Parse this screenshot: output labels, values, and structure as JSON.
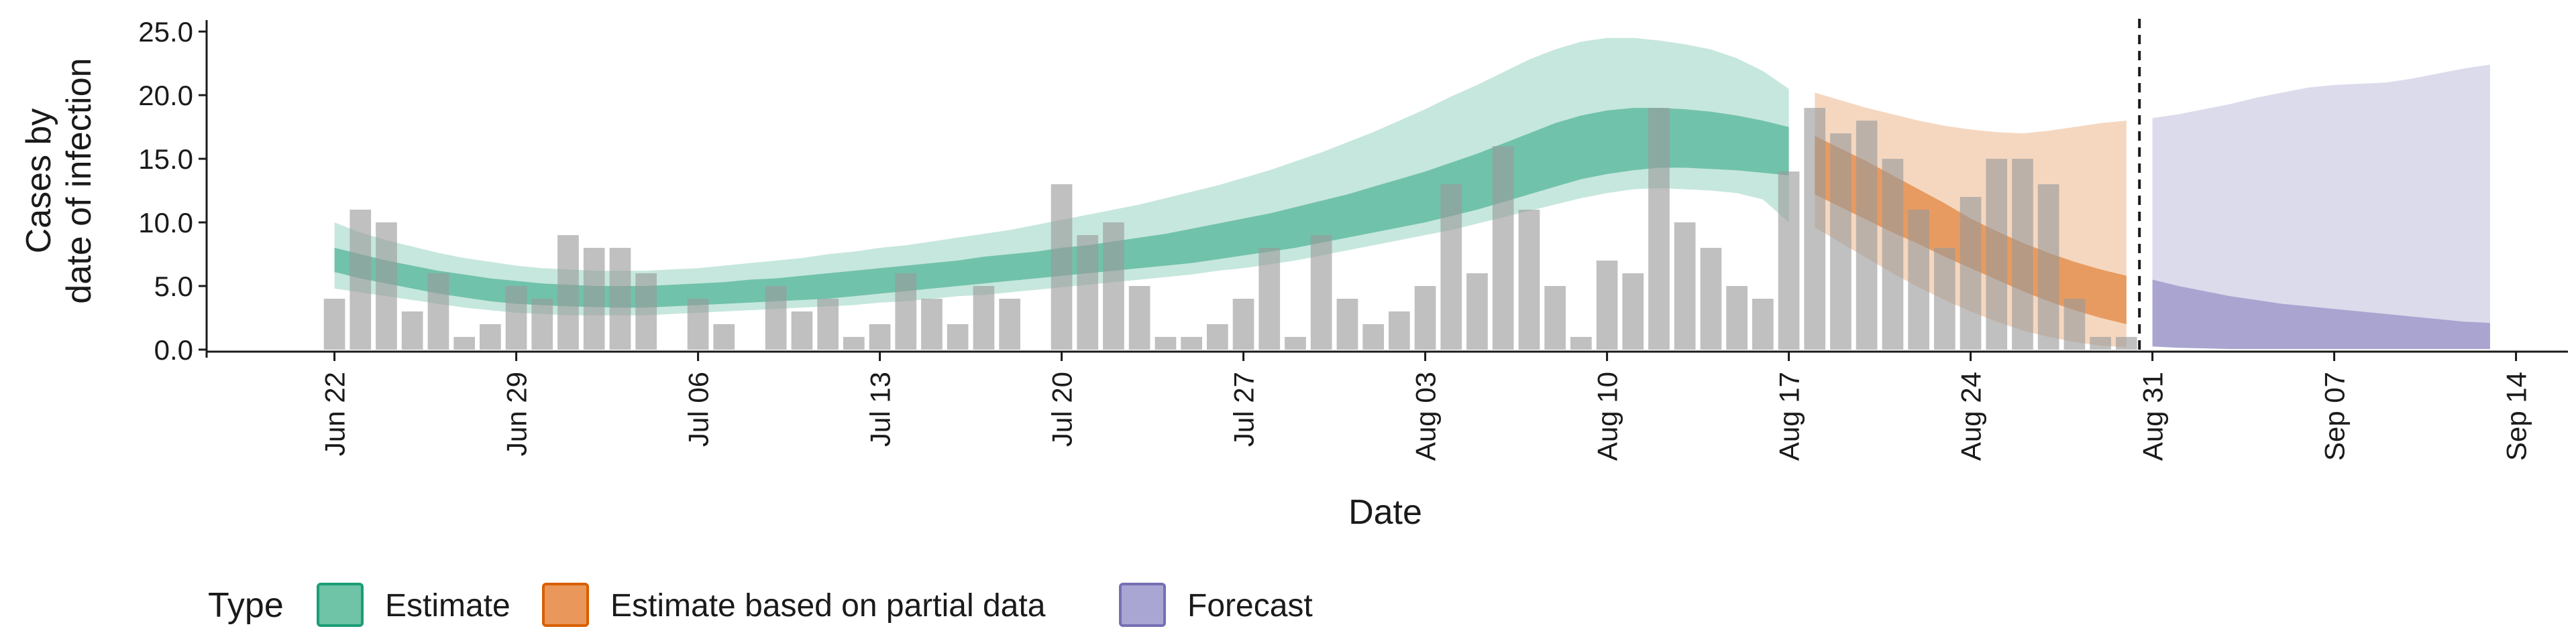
{
  "chart_data": {
    "type": "area",
    "xlabel": "Date",
    "ylabel": [
      "Cases by",
      "date of infection"
    ],
    "ylim": [
      0,
      25.9
    ],
    "y_ticks": [
      "0.0",
      "5.0",
      "10.0",
      "15.0",
      "20.0",
      "25.0"
    ],
    "y_tick_values": [
      0,
      5,
      10,
      15,
      20,
      25
    ],
    "x_ticks": [
      "Jun 22",
      "Jun 29",
      "Jul 06",
      "Jul 13",
      "Jul 20",
      "Jul 27",
      "Aug 03",
      "Aug 10",
      "Aug 17",
      "Aug 24",
      "Aug 31",
      "Sep 07",
      "Sep 14"
    ],
    "x_tick_dates": [
      "2020-06-22",
      "2020-06-29",
      "2020-07-06",
      "2020-07-13",
      "2020-07-20",
      "2020-07-27",
      "2020-08-03",
      "2020-08-10",
      "2020-08-17",
      "2020-08-24",
      "2020-08-31",
      "2020-09-07",
      "2020-09-14"
    ],
    "xlim": [
      "2020-06-17",
      "2020-09-16"
    ],
    "grid": false,
    "legend_position": "bottom",
    "forecast_cutoff_date": "2020-08-30",
    "reported_cases": {
      "start_date": "2020-06-22",
      "values": [
        4,
        11,
        10,
        3,
        6,
        1,
        2,
        5,
        4,
        9,
        8,
        8,
        6,
        0,
        4,
        2,
        0,
        5,
        3,
        4,
        1,
        2,
        6,
        4,
        2,
        5,
        4,
        0,
        13,
        9,
        10,
        5,
        1,
        1,
        2,
        4,
        8,
        1,
        9,
        4,
        2,
        3,
        5,
        13,
        6,
        16,
        11,
        5,
        1,
        7,
        6,
        19,
        10,
        8,
        5,
        4,
        14,
        19,
        17,
        18,
        15,
        11,
        8,
        12,
        15,
        15,
        13,
        4,
        1,
        1
      ]
    },
    "series": [
      {
        "name": "Estimate",
        "color": "#1B9E77",
        "start_date": "2020-06-22",
        "inner_lower": [
          6.1,
          5.6,
          5.2,
          4.8,
          4.4,
          4.1,
          3.8,
          3.6,
          3.5,
          3.4,
          3.35,
          3.3,
          3.3,
          3.4,
          3.5,
          3.6,
          3.7,
          3.8,
          3.9,
          4.0,
          4.2,
          4.4,
          4.6,
          4.8,
          5.0,
          5.2,
          5.4,
          5.6,
          5.8,
          6.0,
          6.2,
          6.4,
          6.6,
          6.8,
          7.1,
          7.4,
          7.7,
          8.0,
          8.4,
          8.8,
          9.2,
          9.6,
          10.0,
          10.5,
          11.0,
          11.6,
          12.2,
          12.8,
          13.4,
          13.8,
          14.1,
          14.3,
          14.3,
          14.2,
          14.1,
          13.9,
          13.7
        ],
        "inner_upper": [
          8.0,
          7.5,
          7.0,
          6.6,
          6.2,
          5.9,
          5.6,
          5.4,
          5.2,
          5.1,
          5.0,
          5.0,
          5.0,
          5.1,
          5.2,
          5.3,
          5.5,
          5.6,
          5.8,
          6.0,
          6.2,
          6.4,
          6.6,
          6.8,
          7.0,
          7.3,
          7.5,
          7.7,
          8.0,
          8.2,
          8.5,
          8.8,
          9.1,
          9.5,
          9.9,
          10.3,
          10.7,
          11.2,
          11.7,
          12.2,
          12.8,
          13.4,
          14.0,
          14.7,
          15.4,
          16.2,
          17.0,
          17.8,
          18.4,
          18.8,
          19.0,
          19.0,
          18.9,
          18.7,
          18.4,
          18.0,
          17.5
        ],
        "outer_lower": [
          4.8,
          4.5,
          4.2,
          3.9,
          3.6,
          3.3,
          3.1,
          2.9,
          2.8,
          2.7,
          2.7,
          2.7,
          2.7,
          2.8,
          2.9,
          3.0,
          3.1,
          3.2,
          3.3,
          3.4,
          3.5,
          3.7,
          3.8,
          4.0,
          4.2,
          4.3,
          4.5,
          4.7,
          4.9,
          5.1,
          5.3,
          5.5,
          5.7,
          5.9,
          6.2,
          6.4,
          6.7,
          7.0,
          7.4,
          7.8,
          8.2,
          8.6,
          9.0,
          9.4,
          9.9,
          10.4,
          10.9,
          11.4,
          11.9,
          12.3,
          12.6,
          12.7,
          12.6,
          12.5,
          12.3,
          11.8,
          10.0
        ],
        "outer_upper": [
          10.0,
          9.2,
          8.6,
          8.1,
          7.6,
          7.2,
          6.9,
          6.6,
          6.4,
          6.3,
          6.2,
          6.2,
          6.2,
          6.3,
          6.4,
          6.6,
          6.8,
          7.0,
          7.2,
          7.5,
          7.7,
          8.0,
          8.2,
          8.5,
          8.8,
          9.1,
          9.4,
          9.8,
          10.2,
          10.6,
          11.0,
          11.4,
          11.9,
          12.4,
          12.9,
          13.5,
          14.1,
          14.8,
          15.5,
          16.3,
          17.1,
          18.0,
          18.9,
          19.9,
          20.8,
          21.8,
          22.8,
          23.6,
          24.2,
          24.5,
          24.5,
          24.3,
          24.0,
          23.6,
          22.9,
          21.9,
          20.5
        ]
      },
      {
        "name": "Estimate based on partial data",
        "color": "#D95F02",
        "start_date": "2020-08-18",
        "inner_lower": [
          12.2,
          11.2,
          10.2,
          9.2,
          8.3,
          7.3,
          6.4,
          5.5,
          4.6,
          3.8,
          3.1,
          2.5,
          2.0
        ],
        "inner_upper": [
          16.8,
          15.8,
          14.8,
          13.7,
          12.6,
          11.5,
          10.3,
          9.3,
          8.4,
          7.6,
          6.9,
          6.3,
          5.8
        ],
        "outer_lower": [
          9.6,
          8.4,
          7.2,
          6.0,
          4.9,
          3.9,
          3.0,
          2.2,
          1.5,
          1.0,
          0.6,
          0.3,
          0.2
        ],
        "outer_upper": [
          20.2,
          19.6,
          19.0,
          18.5,
          18.0,
          17.6,
          17.3,
          17.1,
          17.0,
          17.2,
          17.5,
          17.8,
          18.0
        ]
      },
      {
        "name": "Forecast",
        "color": "#7570B3",
        "start_date": "2020-08-31",
        "inner_lower": [
          0.25,
          0.15,
          0.1,
          0.05,
          0.05,
          0.05,
          0.05,
          0.05,
          0.05,
          0.05,
          0.05,
          0.05,
          0.05,
          0.05
        ],
        "inner_upper": [
          5.5,
          5.0,
          4.6,
          4.2,
          3.9,
          3.6,
          3.4,
          3.2,
          3.0,
          2.8,
          2.6,
          2.4,
          2.2,
          2.1
        ],
        "outer_lower": [
          0.25,
          0.15,
          0.1,
          0.05,
          0.05,
          0.05,
          0.05,
          0.05,
          0.05,
          0.05,
          0.05,
          0.05,
          0.05,
          0.05
        ],
        "outer_upper": [
          18.2,
          18.5,
          18.9,
          19.3,
          19.8,
          20.2,
          20.6,
          20.8,
          20.9,
          21.0,
          21.3,
          21.7,
          22.1,
          22.4
        ]
      }
    ],
    "legend": {
      "title": "Type",
      "items": [
        {
          "label": "Estimate",
          "fill": "#6FC3A6",
          "stroke": "#1B9E77"
        },
        {
          "label": "Estimate based on partial data",
          "fill": "#E9975A",
          "stroke": "#D95F02"
        },
        {
          "label": "Forecast",
          "fill": "#A9A6D4",
          "stroke": "#7570B3"
        }
      ]
    }
  }
}
